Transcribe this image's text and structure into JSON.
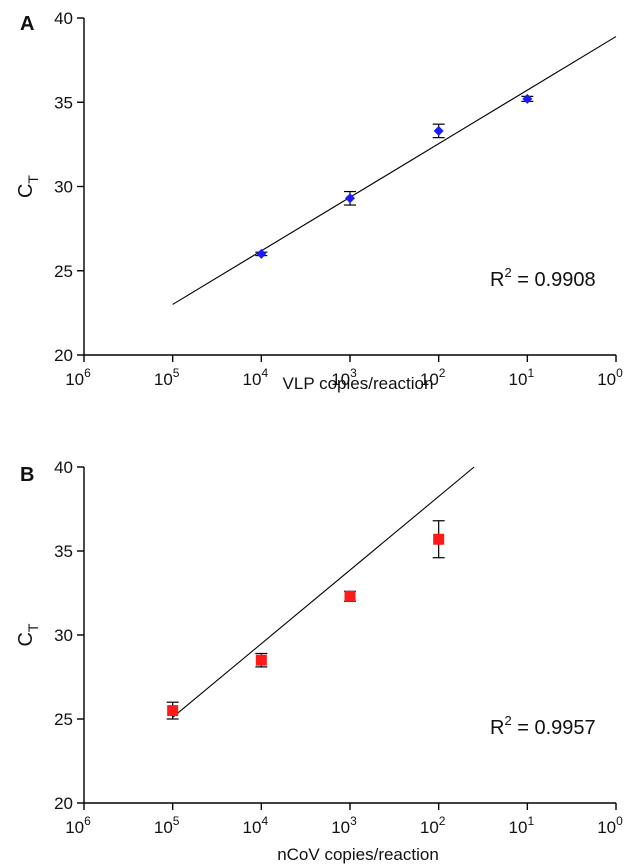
{
  "chart_data": [
    {
      "panel_label": "A",
      "type": "scatter",
      "xlabel": "VLP copies/reaction",
      "ylabel_base": "C",
      "ylabel_sub": "T",
      "x_scale": "log-reversed",
      "xlim_exp": [
        6,
        0
      ],
      "x_tick_exps": [
        6,
        5,
        4,
        3,
        2,
        1,
        0
      ],
      "ylim": [
        20,
        40
      ],
      "y_ticks": [
        20,
        25,
        30,
        35,
        40
      ],
      "grid": false,
      "annotation": {
        "prefix": "R",
        "sup": "2",
        "suffix": " = 0.9908"
      },
      "series": [
        {
          "marker": "diamond",
          "color": "#1a1aff",
          "points": [
            {
              "x_exp": 4,
              "y": 26.0,
              "err": 0.1
            },
            {
              "x_exp": 3,
              "y": 29.3,
              "err": 0.4
            },
            {
              "x_exp": 2,
              "y": 33.3,
              "err": 0.4
            },
            {
              "x_exp": 1,
              "y": 35.2,
              "err": 0.15
            }
          ]
        }
      ],
      "fit": {
        "x_exp": [
          5,
          0
        ],
        "y": [
          23.0,
          38.9
        ]
      }
    },
    {
      "panel_label": "B",
      "type": "scatter",
      "xlabel": "nCoV copies/reaction",
      "ylabel_base": "C",
      "ylabel_sub": "T",
      "x_scale": "log-reversed",
      "xlim_exp": [
        6,
        0
      ],
      "x_tick_exps": [
        6,
        5,
        4,
        3,
        2,
        1,
        0
      ],
      "ylim": [
        20,
        40
      ],
      "y_ticks": [
        20,
        25,
        30,
        35,
        40
      ],
      "grid": false,
      "annotation": {
        "prefix": "R",
        "sup": "2",
        "suffix": " = 0.9957"
      },
      "series": [
        {
          "marker": "square",
          "color": "#ff1a1a",
          "points": [
            {
              "x_exp": 5,
              "y": 25.5,
              "err": 0.5
            },
            {
              "x_exp": 4,
              "y": 28.5,
              "err": 0.4
            },
            {
              "x_exp": 3,
              "y": 32.3,
              "err": 0.3
            },
            {
              "x_exp": 2,
              "y": 35.7,
              "err": 1.1
            }
          ]
        }
      ],
      "fit": {
        "x_exp": [
          5,
          1.6
        ],
        "y": [
          25.1,
          40.0
        ]
      }
    }
  ]
}
